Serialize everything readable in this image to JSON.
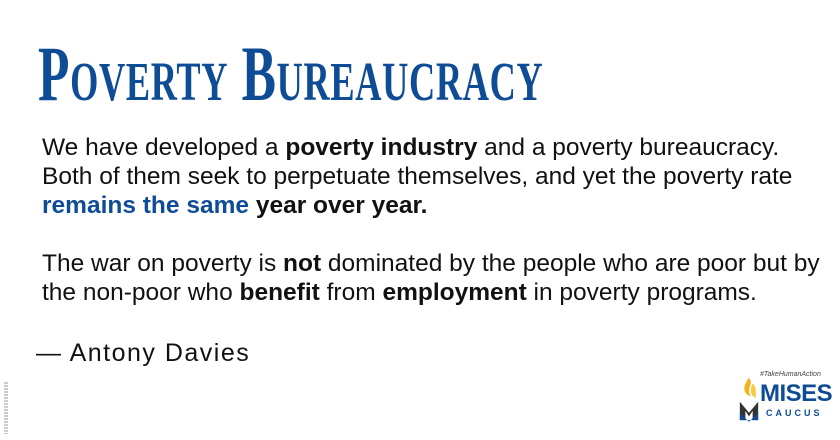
{
  "title": "Poverty Bureaucracy",
  "paragraph1": {
    "t1": "We have developed a ",
    "b1": "poverty industry",
    "t2": " and a poverty bureaucracy. Both of them seek to perpetuate themselves, and yet the poverty rate ",
    "blue1": "remains the same",
    "t3": " ",
    "b2": "year over year."
  },
  "paragraph2": {
    "t1": "The war on poverty is ",
    "b1": "not",
    "t2": " dominated by the people who are poor but by the non-poor who ",
    "b2": "benefit",
    "t3": " from ",
    "b3": "employment",
    "t4": " in poverty programs."
  },
  "attribution": "— Antony Davies",
  "logo": {
    "hashtag": "#TakeHumanAction",
    "name": "MISES",
    "sub": "CAUCUS",
    "icon": "flame-icon"
  },
  "colors": {
    "accent": "#0f4c96",
    "flame": "#f5b21a"
  }
}
